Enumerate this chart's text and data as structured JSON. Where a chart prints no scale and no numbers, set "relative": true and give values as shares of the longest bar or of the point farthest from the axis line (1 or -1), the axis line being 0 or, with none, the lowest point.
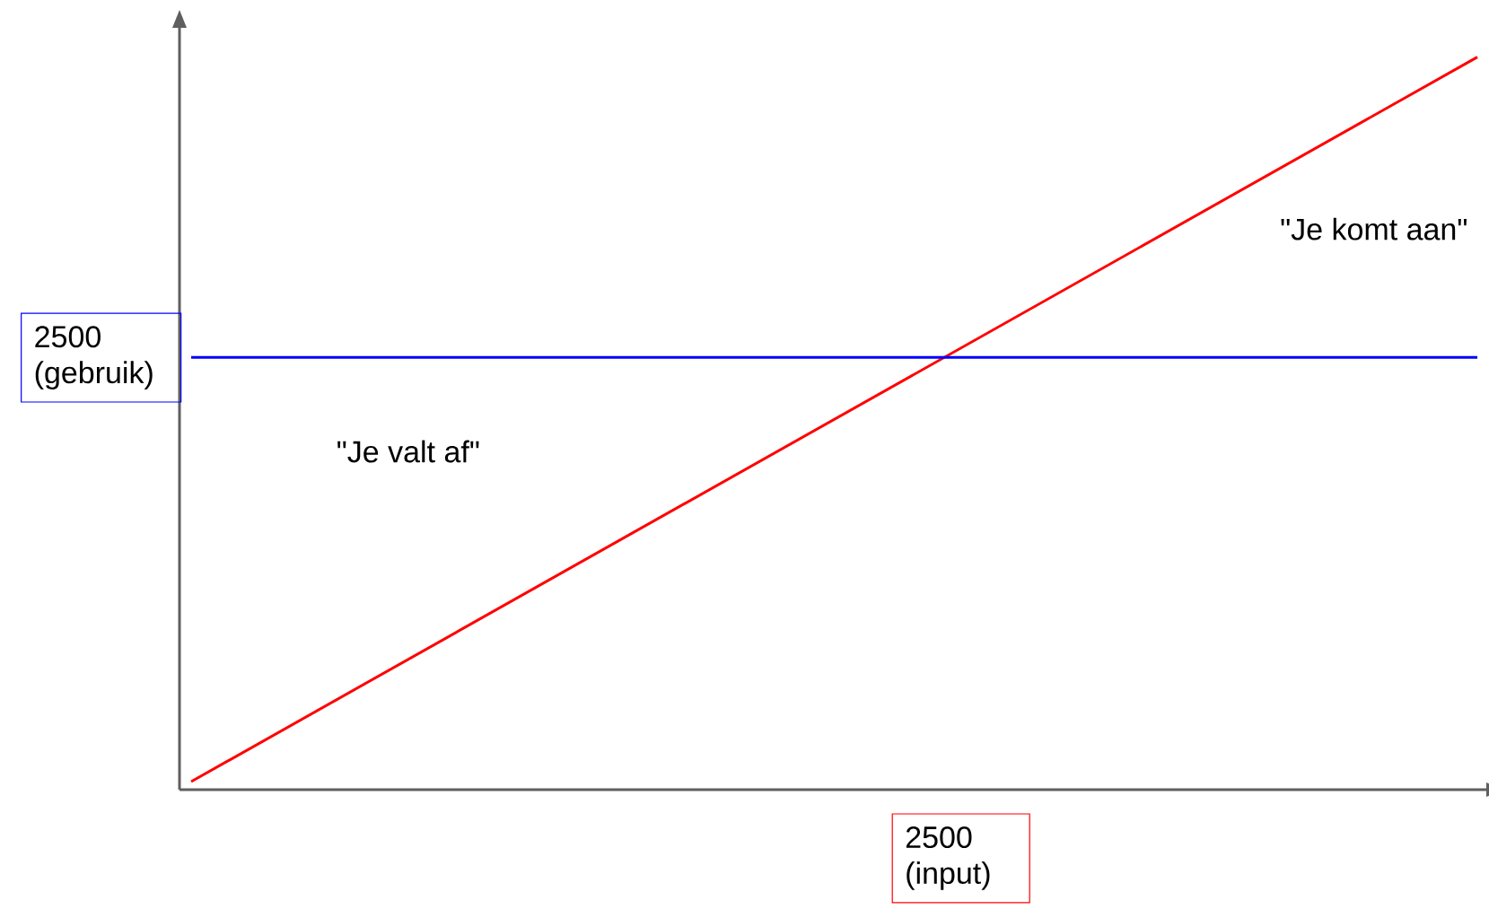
{
  "chart_data": {
    "type": "line",
    "relative": true,
    "categories": [
      null,
      null
    ],
    "series": [
      {
        "color": "#ff0000",
        "values": [
          0.011,
          1
        ]
      },
      {
        "color": "#0000ff",
        "values": [
          0.59,
          0.59
        ]
      }
    ],
    "annotations": [
      "2500 (gebruik)",
      "\"Je valt af\"",
      "\"Je komt aan\"",
      "2500 (input)"
    ],
    "line_style": "solid"
  }
}
